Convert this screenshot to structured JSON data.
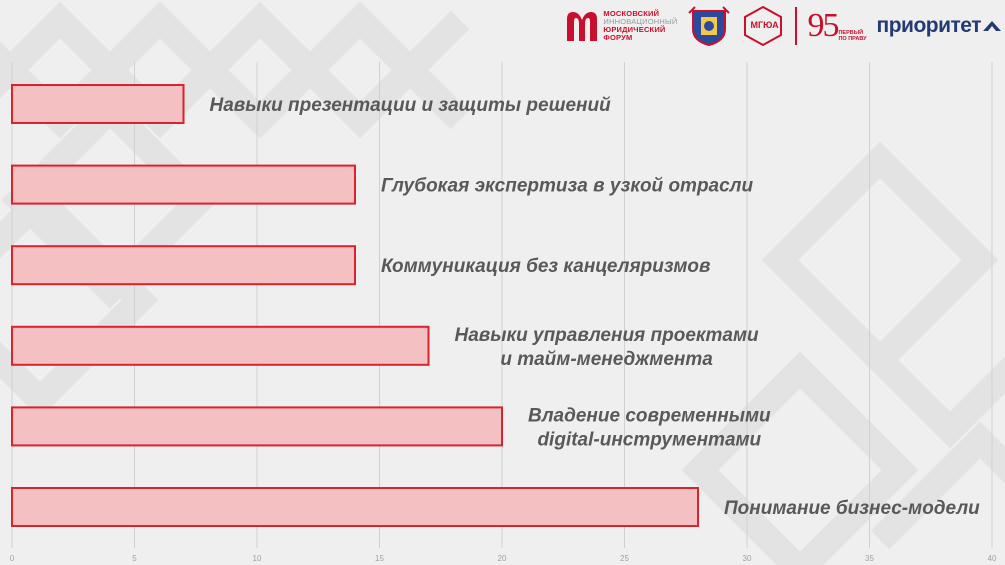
{
  "logos": {
    "forum_lines": [
      "МОСКОВСКИЙ",
      "ИННОВАЦИОННЫЙ",
      "ЮРИДИЧЕСКИЙ",
      "ФОРУМ"
    ],
    "mgua": "МГЮА",
    "anniversary_number": "95",
    "anniversary_caption": [
      "ПЕРВЫЙ",
      "ПО ПРАВУ"
    ],
    "priority": "приоритет"
  },
  "colors": {
    "bar_fill": "#f4c0c2",
    "bar_stroke": "#d9232e",
    "label": "#595959",
    "grid": "#d0d0d0",
    "tick": "#a0a0a0"
  },
  "chart_data": {
    "type": "bar",
    "orientation": "horizontal",
    "categories": [
      [
        "Навыки презентации и защиты решений"
      ],
      [
        "Глубокая экспертиза в узкой отрасли"
      ],
      [
        "Коммуникация без канцеляризмов"
      ],
      [
        "Навыки управления проектами",
        "и тайм-менеджмента"
      ],
      [
        "Владение современными",
        "digital-инструментами"
      ],
      [
        "Понимание бизнес-модели"
      ]
    ],
    "values": [
      7,
      14,
      14,
      17,
      20,
      28
    ],
    "xlim": [
      0,
      40
    ],
    "xticks": [
      0,
      5,
      10,
      15,
      20,
      25,
      30,
      35,
      40
    ],
    "grid": true,
    "title": "",
    "xlabel": "",
    "ylabel": ""
  }
}
